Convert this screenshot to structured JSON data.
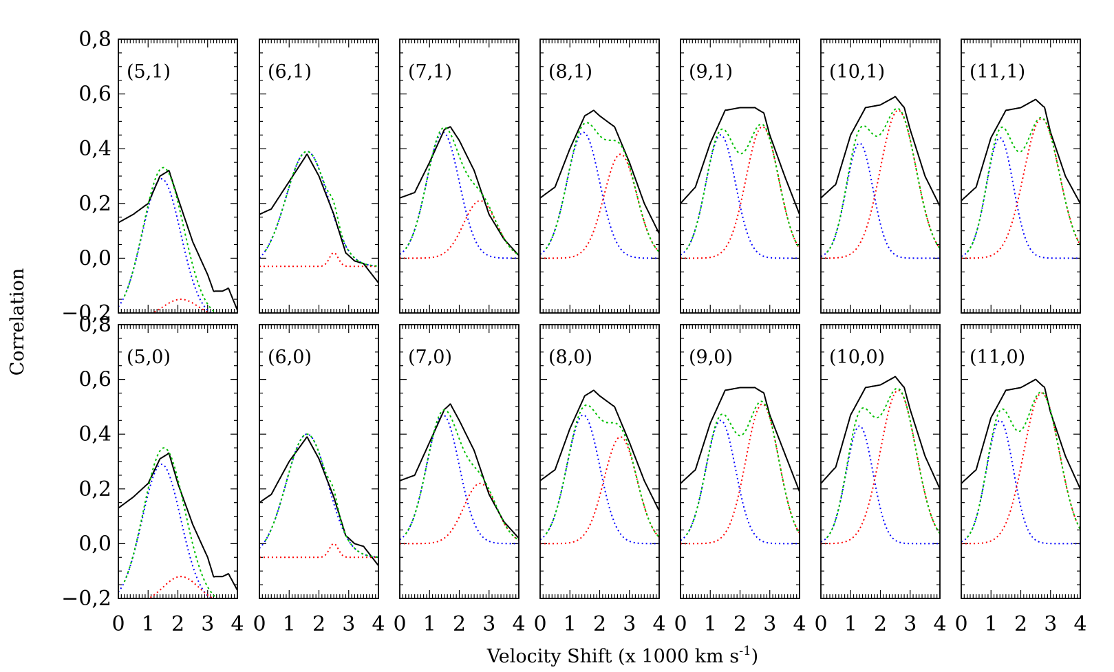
{
  "chart_data": {
    "type": "line",
    "xlabel": "Velocity Shift (x 1000 km s",
    "xlabel_superscript": "-1",
    "xlabel_close": ")",
    "ylabel": "Correlation",
    "xlim": [
      0,
      4
    ],
    "ylim": [
      -0.2,
      0.8
    ],
    "x_ticks": [
      "0",
      "1",
      "2",
      "3",
      "4"
    ],
    "y_ticks": [
      "-0.2",
      "0.0",
      "0.2",
      "0.4",
      "0.6",
      "0.8"
    ],
    "y_tick_values": [
      -0.2,
      0.0,
      0.2,
      0.4,
      0.6,
      0.8
    ],
    "grid": false,
    "legend": "none",
    "series_styles": {
      "observed": {
        "color": "#000000",
        "dash": "solid"
      },
      "component_1": {
        "color": "#0000ff",
        "dash": "dotted"
      },
      "component_2": {
        "color": "#ff0000",
        "dash": "dotted"
      },
      "fit_sum": {
        "color": "#00c000",
        "dash": "dotted"
      }
    },
    "panels": [
      {
        "label": "(5,1)",
        "obs": [
          [
            0,
            0.13
          ],
          [
            0.5,
            0.16
          ],
          [
            1,
            0.2
          ],
          [
            1.4,
            0.3
          ],
          [
            1.7,
            0.32
          ],
          [
            2,
            0.22
          ],
          [
            2.5,
            0.06
          ],
          [
            3,
            -0.06
          ],
          [
            3.2,
            -0.12
          ],
          [
            3.5,
            -0.12
          ],
          [
            3.7,
            -0.11
          ],
          [
            4,
            -0.19
          ]
        ],
        "c1": {
          "a": 0.51,
          "mu": 1.45,
          "sigma": 0.65,
          "base": -0.22
        },
        "c2": {
          "a": 0.07,
          "mu": 2.1,
          "sigma": 0.6,
          "base": -0.22
        }
      },
      {
        "label": "(6,1)",
        "obs": [
          [
            0,
            0.16
          ],
          [
            0.4,
            0.18
          ],
          [
            1,
            0.28
          ],
          [
            1.6,
            0.38
          ],
          [
            2,
            0.3
          ],
          [
            2.5,
            0.16
          ],
          [
            2.9,
            0.02
          ],
          [
            3.2,
            -0.01
          ],
          [
            3.5,
            -0.02
          ],
          [
            4,
            -0.09
          ]
        ],
        "c1": {
          "a": 0.42,
          "mu": 1.6,
          "sigma": 0.7,
          "base": -0.03
        },
        "c2": {
          "a": 0.05,
          "mu": 2.5,
          "sigma": 0.15,
          "base": -0.03
        }
      },
      {
        "label": "(7,1)",
        "obs": [
          [
            0,
            0.22
          ],
          [
            0.5,
            0.24
          ],
          [
            1,
            0.35
          ],
          [
            1.5,
            0.47
          ],
          [
            1.7,
            0.48
          ],
          [
            2,
            0.43
          ],
          [
            2.5,
            0.32
          ],
          [
            3,
            0.16
          ],
          [
            3.5,
            0.07
          ],
          [
            4,
            0.01
          ]
        ],
        "c1": {
          "a": 0.46,
          "mu": 1.45,
          "sigma": 0.55,
          "base": 0
        },
        "c2": {
          "a": 0.21,
          "mu": 2.7,
          "sigma": 0.55,
          "base": 0
        }
      },
      {
        "label": "(8,1)",
        "obs": [
          [
            0,
            0.22
          ],
          [
            0.5,
            0.26
          ],
          [
            1,
            0.4
          ],
          [
            1.5,
            0.52
          ],
          [
            1.8,
            0.54
          ],
          [
            2,
            0.52
          ],
          [
            2.5,
            0.48
          ],
          [
            3,
            0.35
          ],
          [
            3.5,
            0.2
          ],
          [
            4,
            0.09
          ]
        ],
        "c1": {
          "a": 0.46,
          "mu": 1.45,
          "sigma": 0.55,
          "base": 0
        },
        "c2": {
          "a": 0.38,
          "mu": 2.7,
          "sigma": 0.55,
          "base": 0
        }
      },
      {
        "label": "(9,1)",
        "obs": [
          [
            0,
            0.2
          ],
          [
            0.5,
            0.26
          ],
          [
            1,
            0.42
          ],
          [
            1.5,
            0.54
          ],
          [
            2,
            0.55
          ],
          [
            2.5,
            0.55
          ],
          [
            2.8,
            0.53
          ],
          [
            3,
            0.45
          ],
          [
            3.5,
            0.3
          ],
          [
            4,
            0.16
          ]
        ],
        "c1": {
          "a": 0.45,
          "mu": 1.35,
          "sigma": 0.5,
          "base": 0
        },
        "c2": {
          "a": 0.48,
          "mu": 2.75,
          "sigma": 0.55,
          "base": 0
        }
      },
      {
        "label": "(10,1)",
        "obs": [
          [
            0,
            0.22
          ],
          [
            0.5,
            0.27
          ],
          [
            1,
            0.45
          ],
          [
            1.5,
            0.55
          ],
          [
            2,
            0.56
          ],
          [
            2.5,
            0.59
          ],
          [
            2.8,
            0.55
          ],
          [
            3,
            0.47
          ],
          [
            3.5,
            0.3
          ],
          [
            4,
            0.19
          ]
        ],
        "c1": {
          "a": 0.42,
          "mu": 1.3,
          "sigma": 0.45,
          "base": 0
        },
        "c2": {
          "a": 0.54,
          "mu": 2.6,
          "sigma": 0.6,
          "base": 0
        }
      },
      {
        "label": "(11,1)",
        "obs": [
          [
            0,
            0.21
          ],
          [
            0.5,
            0.26
          ],
          [
            1,
            0.44
          ],
          [
            1.5,
            0.54
          ],
          [
            2,
            0.55
          ],
          [
            2.5,
            0.58
          ],
          [
            2.8,
            0.55
          ],
          [
            3,
            0.46
          ],
          [
            3.5,
            0.3
          ],
          [
            4,
            0.2
          ]
        ],
        "c1": {
          "a": 0.44,
          "mu": 1.3,
          "sigma": 0.45,
          "base": 0
        },
        "c2": {
          "a": 0.51,
          "mu": 2.7,
          "sigma": 0.6,
          "base": 0
        }
      },
      {
        "label": "(5,0)",
        "obs": [
          [
            0,
            0.13
          ],
          [
            0.5,
            0.17
          ],
          [
            1,
            0.22
          ],
          [
            1.4,
            0.31
          ],
          [
            1.7,
            0.33
          ],
          [
            2,
            0.22
          ],
          [
            2.5,
            0.07
          ],
          [
            3,
            -0.05
          ],
          [
            3.2,
            -0.12
          ],
          [
            3.5,
            -0.12
          ],
          [
            3.7,
            -0.11
          ],
          [
            4,
            -0.17
          ]
        ],
        "c1": {
          "a": 0.51,
          "mu": 1.45,
          "sigma": 0.65,
          "base": -0.22
        },
        "c2": {
          "a": 0.1,
          "mu": 2.1,
          "sigma": 0.6,
          "base": -0.22
        }
      },
      {
        "label": "(6,0)",
        "obs": [
          [
            0,
            0.15
          ],
          [
            0.4,
            0.18
          ],
          [
            1,
            0.3
          ],
          [
            1.6,
            0.39
          ],
          [
            2,
            0.31
          ],
          [
            2.5,
            0.17
          ],
          [
            2.9,
            0.03
          ],
          [
            3.2,
            0.0
          ],
          [
            3.5,
            -0.01
          ],
          [
            4,
            -0.08
          ]
        ],
        "c1": {
          "a": 0.45,
          "mu": 1.6,
          "sigma": 0.7,
          "base": -0.05
        },
        "c2": {
          "a": 0.05,
          "mu": 2.5,
          "sigma": 0.15,
          "base": -0.05
        }
      },
      {
        "label": "(7,0)",
        "obs": [
          [
            0,
            0.23
          ],
          [
            0.5,
            0.25
          ],
          [
            1,
            0.37
          ],
          [
            1.5,
            0.49
          ],
          [
            1.7,
            0.51
          ],
          [
            2,
            0.45
          ],
          [
            2.5,
            0.34
          ],
          [
            3,
            0.18
          ],
          [
            3.5,
            0.08
          ],
          [
            4,
            0.02
          ]
        ],
        "c1": {
          "a": 0.47,
          "mu": 1.45,
          "sigma": 0.55,
          "base": 0
        },
        "c2": {
          "a": 0.22,
          "mu": 2.7,
          "sigma": 0.55,
          "base": 0
        }
      },
      {
        "label": "(8,0)",
        "obs": [
          [
            0,
            0.23
          ],
          [
            0.5,
            0.27
          ],
          [
            1,
            0.42
          ],
          [
            1.5,
            0.54
          ],
          [
            1.8,
            0.56
          ],
          [
            2,
            0.54
          ],
          [
            2.5,
            0.5
          ],
          [
            3,
            0.37
          ],
          [
            3.5,
            0.23
          ],
          [
            4,
            0.12
          ]
        ],
        "c1": {
          "a": 0.47,
          "mu": 1.45,
          "sigma": 0.55,
          "base": 0
        },
        "c2": {
          "a": 0.39,
          "mu": 2.7,
          "sigma": 0.55,
          "base": 0
        }
      },
      {
        "label": "(9,0)",
        "obs": [
          [
            0,
            0.22
          ],
          [
            0.5,
            0.27
          ],
          [
            1,
            0.44
          ],
          [
            1.5,
            0.56
          ],
          [
            2,
            0.57
          ],
          [
            2.5,
            0.57
          ],
          [
            2.8,
            0.55
          ],
          [
            3,
            0.47
          ],
          [
            3.5,
            0.33
          ],
          [
            4,
            0.19
          ]
        ],
        "c1": {
          "a": 0.45,
          "mu": 1.35,
          "sigma": 0.5,
          "base": 0
        },
        "c2": {
          "a": 0.51,
          "mu": 2.75,
          "sigma": 0.55,
          "base": 0
        }
      },
      {
        "label": "(10,0)",
        "obs": [
          [
            0,
            0.22
          ],
          [
            0.5,
            0.28
          ],
          [
            1,
            0.47
          ],
          [
            1.5,
            0.57
          ],
          [
            2,
            0.58
          ],
          [
            2.5,
            0.61
          ],
          [
            2.8,
            0.57
          ],
          [
            3,
            0.49
          ],
          [
            3.5,
            0.32
          ],
          [
            4,
            0.2
          ]
        ],
        "c1": {
          "a": 0.43,
          "mu": 1.3,
          "sigma": 0.45,
          "base": 0
        },
        "c2": {
          "a": 0.56,
          "mu": 2.6,
          "sigma": 0.6,
          "base": 0
        }
      },
      {
        "label": "(11,0)",
        "obs": [
          [
            0,
            0.22
          ],
          [
            0.5,
            0.27
          ],
          [
            1,
            0.46
          ],
          [
            1.5,
            0.56
          ],
          [
            2,
            0.57
          ],
          [
            2.5,
            0.6
          ],
          [
            2.8,
            0.57
          ],
          [
            3,
            0.48
          ],
          [
            3.5,
            0.32
          ],
          [
            4,
            0.2
          ]
        ],
        "c1": {
          "a": 0.45,
          "mu": 1.3,
          "sigma": 0.45,
          "base": 0
        },
        "c2": {
          "a": 0.55,
          "mu": 2.7,
          "sigma": 0.6,
          "base": 0
        }
      }
    ]
  }
}
